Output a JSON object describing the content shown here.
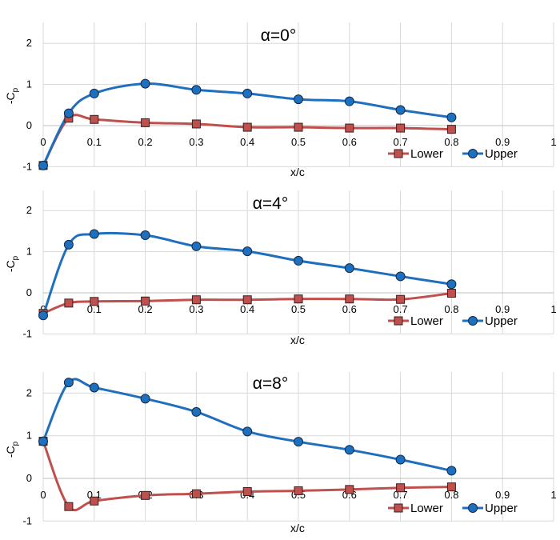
{
  "chart_data": [
    {
      "type": "line",
      "title": "α=0°",
      "xlabel": "x/c",
      "ylabel": "-C",
      "ylabel_sub": "p",
      "xlim": [
        0,
        1
      ],
      "ylim": [
        -1,
        2.5
      ],
      "xticks": [
        "0",
        "0.1",
        "0.2",
        "0.3",
        "0.4",
        "0.5",
        "0.6",
        "0.7",
        "0.8",
        "0.9",
        "1"
      ],
      "yticks": [
        "-1",
        "0",
        "1",
        "2"
      ],
      "grid": true,
      "legend_position": "bottom-right",
      "series": [
        {
          "name": "Lower",
          "color": "#c0504d",
          "marker": "square",
          "x": [
            0,
            0.05,
            0.1,
            0.2,
            0.3,
            0.4,
            0.5,
            0.6,
            0.7,
            0.8
          ],
          "y": [
            -0.97,
            0.18,
            0.15,
            0.07,
            0.04,
            -0.04,
            -0.04,
            -0.06,
            -0.06,
            -0.09
          ]
        },
        {
          "name": "Upper",
          "color": "#1f6fbf",
          "marker": "circle",
          "x": [
            0,
            0.05,
            0.1,
            0.2,
            0.3,
            0.4,
            0.5,
            0.6,
            0.7,
            0.8
          ],
          "y": [
            -0.97,
            0.3,
            0.78,
            1.02,
            0.87,
            0.78,
            0.64,
            0.59,
            0.38,
            0.2
          ]
        }
      ]
    },
    {
      "type": "line",
      "title": "α=4°",
      "xlabel": "x/c",
      "ylabel": "-C",
      "ylabel_sub": "p",
      "xlim": [
        0,
        1
      ],
      "ylim": [
        -1,
        2.5
      ],
      "xticks": [
        "0",
        "0.1",
        "0.2",
        "0.3",
        "0.4",
        "0.5",
        "0.6",
        "0.7",
        "0.8",
        "0.9",
        "1"
      ],
      "yticks": [
        "-1",
        "0",
        "1",
        "2"
      ],
      "grid": true,
      "legend_position": "bottom-right",
      "series": [
        {
          "name": "Lower",
          "color": "#c0504d",
          "marker": "square",
          "x": [
            0,
            0.05,
            0.1,
            0.2,
            0.3,
            0.4,
            0.5,
            0.6,
            0.7,
            0.8
          ],
          "y": [
            -0.5,
            -0.25,
            -0.21,
            -0.2,
            -0.17,
            -0.17,
            -0.15,
            -0.15,
            -0.16,
            -0.01
          ]
        },
        {
          "name": "Upper",
          "color": "#1f6fbf",
          "marker": "circle",
          "x": [
            0,
            0.05,
            0.1,
            0.2,
            0.3,
            0.4,
            0.5,
            0.6,
            0.7,
            0.8
          ],
          "y": [
            -0.55,
            1.17,
            1.43,
            1.4,
            1.13,
            1.01,
            0.78,
            0.6,
            0.4,
            0.21
          ]
        }
      ]
    },
    {
      "type": "line",
      "title": "α=8°",
      "xlabel": "x/c",
      "ylabel": "-C",
      "ylabel_sub": "p",
      "xlim": [
        0,
        1
      ],
      "ylim": [
        -1,
        2.5
      ],
      "xticks": [
        "0",
        "0.1",
        "0.2",
        "0.3",
        "0.4",
        "0.5",
        "0.6",
        "0.7",
        "0.8",
        "0.9",
        "1"
      ],
      "yticks": [
        "-1",
        "0",
        "1",
        "2"
      ],
      "grid": true,
      "legend_position": "bottom-right",
      "series": [
        {
          "name": "Lower",
          "color": "#c0504d",
          "marker": "square",
          "x": [
            0,
            0.05,
            0.1,
            0.2,
            0.3,
            0.4,
            0.5,
            0.6,
            0.7,
            0.8
          ],
          "y": [
            0.87,
            -0.66,
            -0.53,
            -0.4,
            -0.36,
            -0.31,
            -0.29,
            -0.26,
            -0.22,
            -0.2
          ]
        },
        {
          "name": "Upper",
          "color": "#1f6fbf",
          "marker": "circle",
          "x": [
            0,
            0.05,
            0.1,
            0.2,
            0.3,
            0.4,
            0.5,
            0.6,
            0.7,
            0.8
          ],
          "y": [
            0.87,
            2.25,
            2.13,
            1.87,
            1.56,
            1.1,
            0.86,
            0.67,
            0.44,
            0.18
          ]
        }
      ]
    }
  ]
}
